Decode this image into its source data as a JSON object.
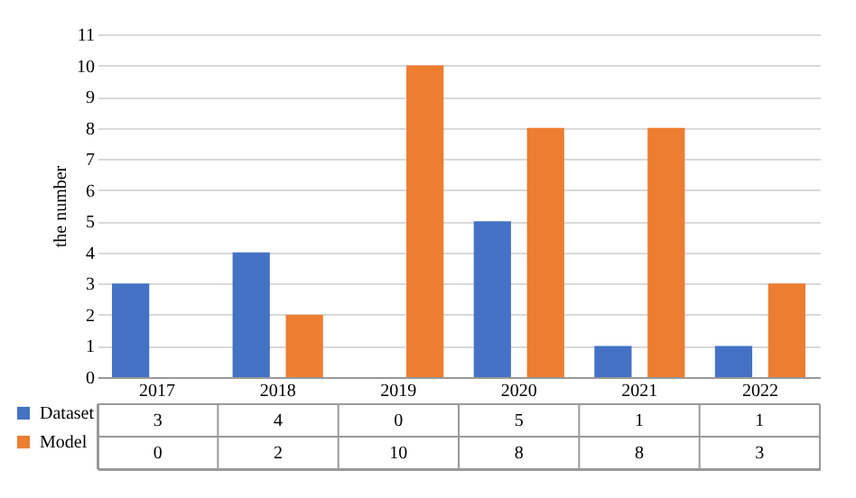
{
  "chart_data": {
    "type": "bar",
    "ylabel": "the number",
    "categories": [
      "2017",
      "2018",
      "2019",
      "2020",
      "2021",
      "2022"
    ],
    "series": [
      {
        "name": "Dataset",
        "color": "#4472c4",
        "values": [
          3,
          4,
          0,
          5,
          1,
          1
        ]
      },
      {
        "name": "Model",
        "color": "#ed7d31",
        "values": [
          0,
          2,
          10,
          8,
          8,
          3
        ]
      }
    ],
    "ylim": [
      0,
      11
    ],
    "yticks": [
      0,
      1,
      2,
      3,
      4,
      5,
      6,
      7,
      8,
      9,
      10,
      11
    ],
    "grid": "y",
    "legend": "bottom",
    "data_labels": true
  }
}
